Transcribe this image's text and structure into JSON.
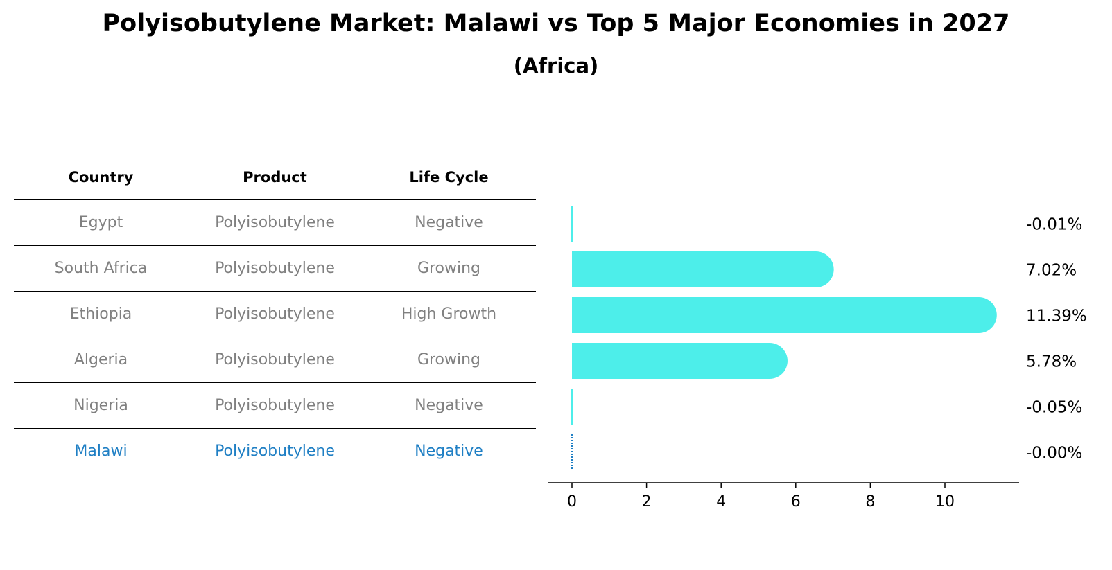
{
  "title": "Polyisobutylene Market: Malawi vs Top 5 Major Economies in 2027",
  "subtitle": "(Africa)",
  "table": {
    "headers": [
      "Country",
      "Product",
      "Life Cycle"
    ],
    "rows": [
      {
        "country": "Egypt",
        "product": "Polyisobutylene",
        "life_cycle": "Negative"
      },
      {
        "country": "South Africa",
        "product": "Polyisobutylene",
        "life_cycle": "Growing"
      },
      {
        "country": "Ethiopia",
        "product": "Polyisobutylene",
        "life_cycle": "High Growth"
      },
      {
        "country": "Algeria",
        "product": "Polyisobutylene",
        "life_cycle": "Growing"
      },
      {
        "country": "Nigeria",
        "product": "Polyisobutylene",
        "life_cycle": "Negative"
      },
      {
        "country": "Malawi",
        "product": "Polyisobutylene",
        "life_cycle": "Negative"
      }
    ]
  },
  "colors": {
    "bar": "#4deeea",
    "highlight": "#1f7fc4",
    "muted_text": "#808080"
  },
  "chart_data": {
    "type": "bar",
    "orientation": "horizontal",
    "categories": [
      "Egypt",
      "South Africa",
      "Ethiopia",
      "Algeria",
      "Nigeria",
      "Malawi"
    ],
    "values": [
      -0.01,
      7.02,
      11.39,
      5.78,
      -0.05,
      -0.0
    ],
    "value_labels": [
      "-0.01%",
      "7.02%",
      "11.39%",
      "5.78%",
      "-0.05%",
      "-0.00%"
    ],
    "xlim": [
      -0.6,
      12.0
    ],
    "xticks": [
      0,
      2,
      4,
      6,
      8,
      10
    ],
    "highlight": "Malawi",
    "title": "",
    "xlabel": "",
    "ylabel": ""
  }
}
